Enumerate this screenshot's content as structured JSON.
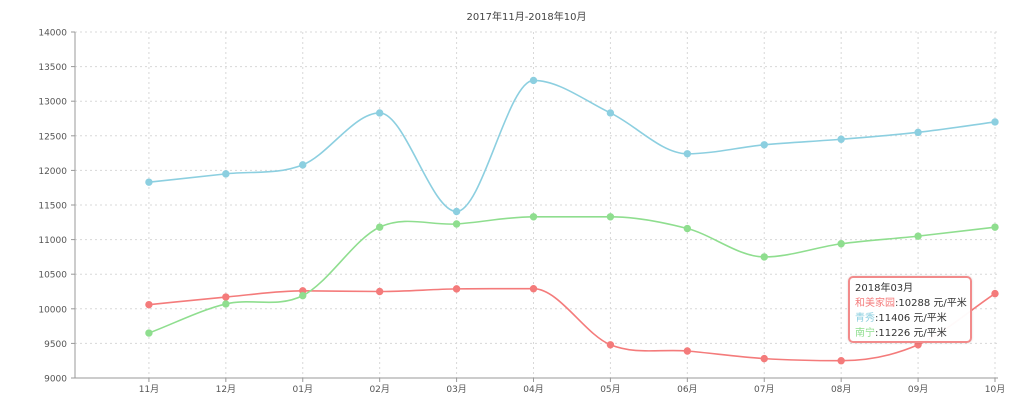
{
  "chart_data": {
    "type": "line",
    "title": "2017年11月-2018年10月",
    "categories": [
      "11月",
      "12月",
      "01月",
      "02月",
      "03月",
      "04月",
      "05月",
      "06月",
      "07月",
      "08月",
      "09月",
      "10月"
    ],
    "ylim": [
      9000,
      14000
    ],
    "yticks": [
      9000,
      9500,
      10000,
      10500,
      11000,
      11500,
      12000,
      12500,
      13000,
      13500,
      14000
    ],
    "grid": true,
    "series": [
      {
        "name": "和美家园",
        "color": "#f47b7b",
        "values": [
          10060,
          10170,
          10260,
          10250,
          10288,
          10290,
          9480,
          9390,
          9280,
          9250,
          9480,
          10220
        ]
      },
      {
        "name": "青秀",
        "color": "#8ccfe0",
        "values": [
          11830,
          11950,
          12080,
          12830,
          11406,
          13300,
          12830,
          12240,
          12370,
          12450,
          12550,
          12700
        ]
      },
      {
        "name": "南宁",
        "color": "#8fde8f",
        "values": [
          9650,
          10070,
          10190,
          11180,
          11226,
          11330,
          11330,
          11160,
          10750,
          10940,
          11050,
          11180
        ]
      }
    ],
    "tooltip": {
      "title": "2018年03月",
      "unit": "元/平米",
      "rows": [
        {
          "series": "和美家园",
          "value": "10288",
          "color": "#f47b7b"
        },
        {
          "series": "青秀",
          "value": "11406",
          "color": "#8ccfe0"
        },
        {
          "series": "南宁",
          "value": "11226",
          "color": "#8fde8f"
        }
      ]
    }
  }
}
